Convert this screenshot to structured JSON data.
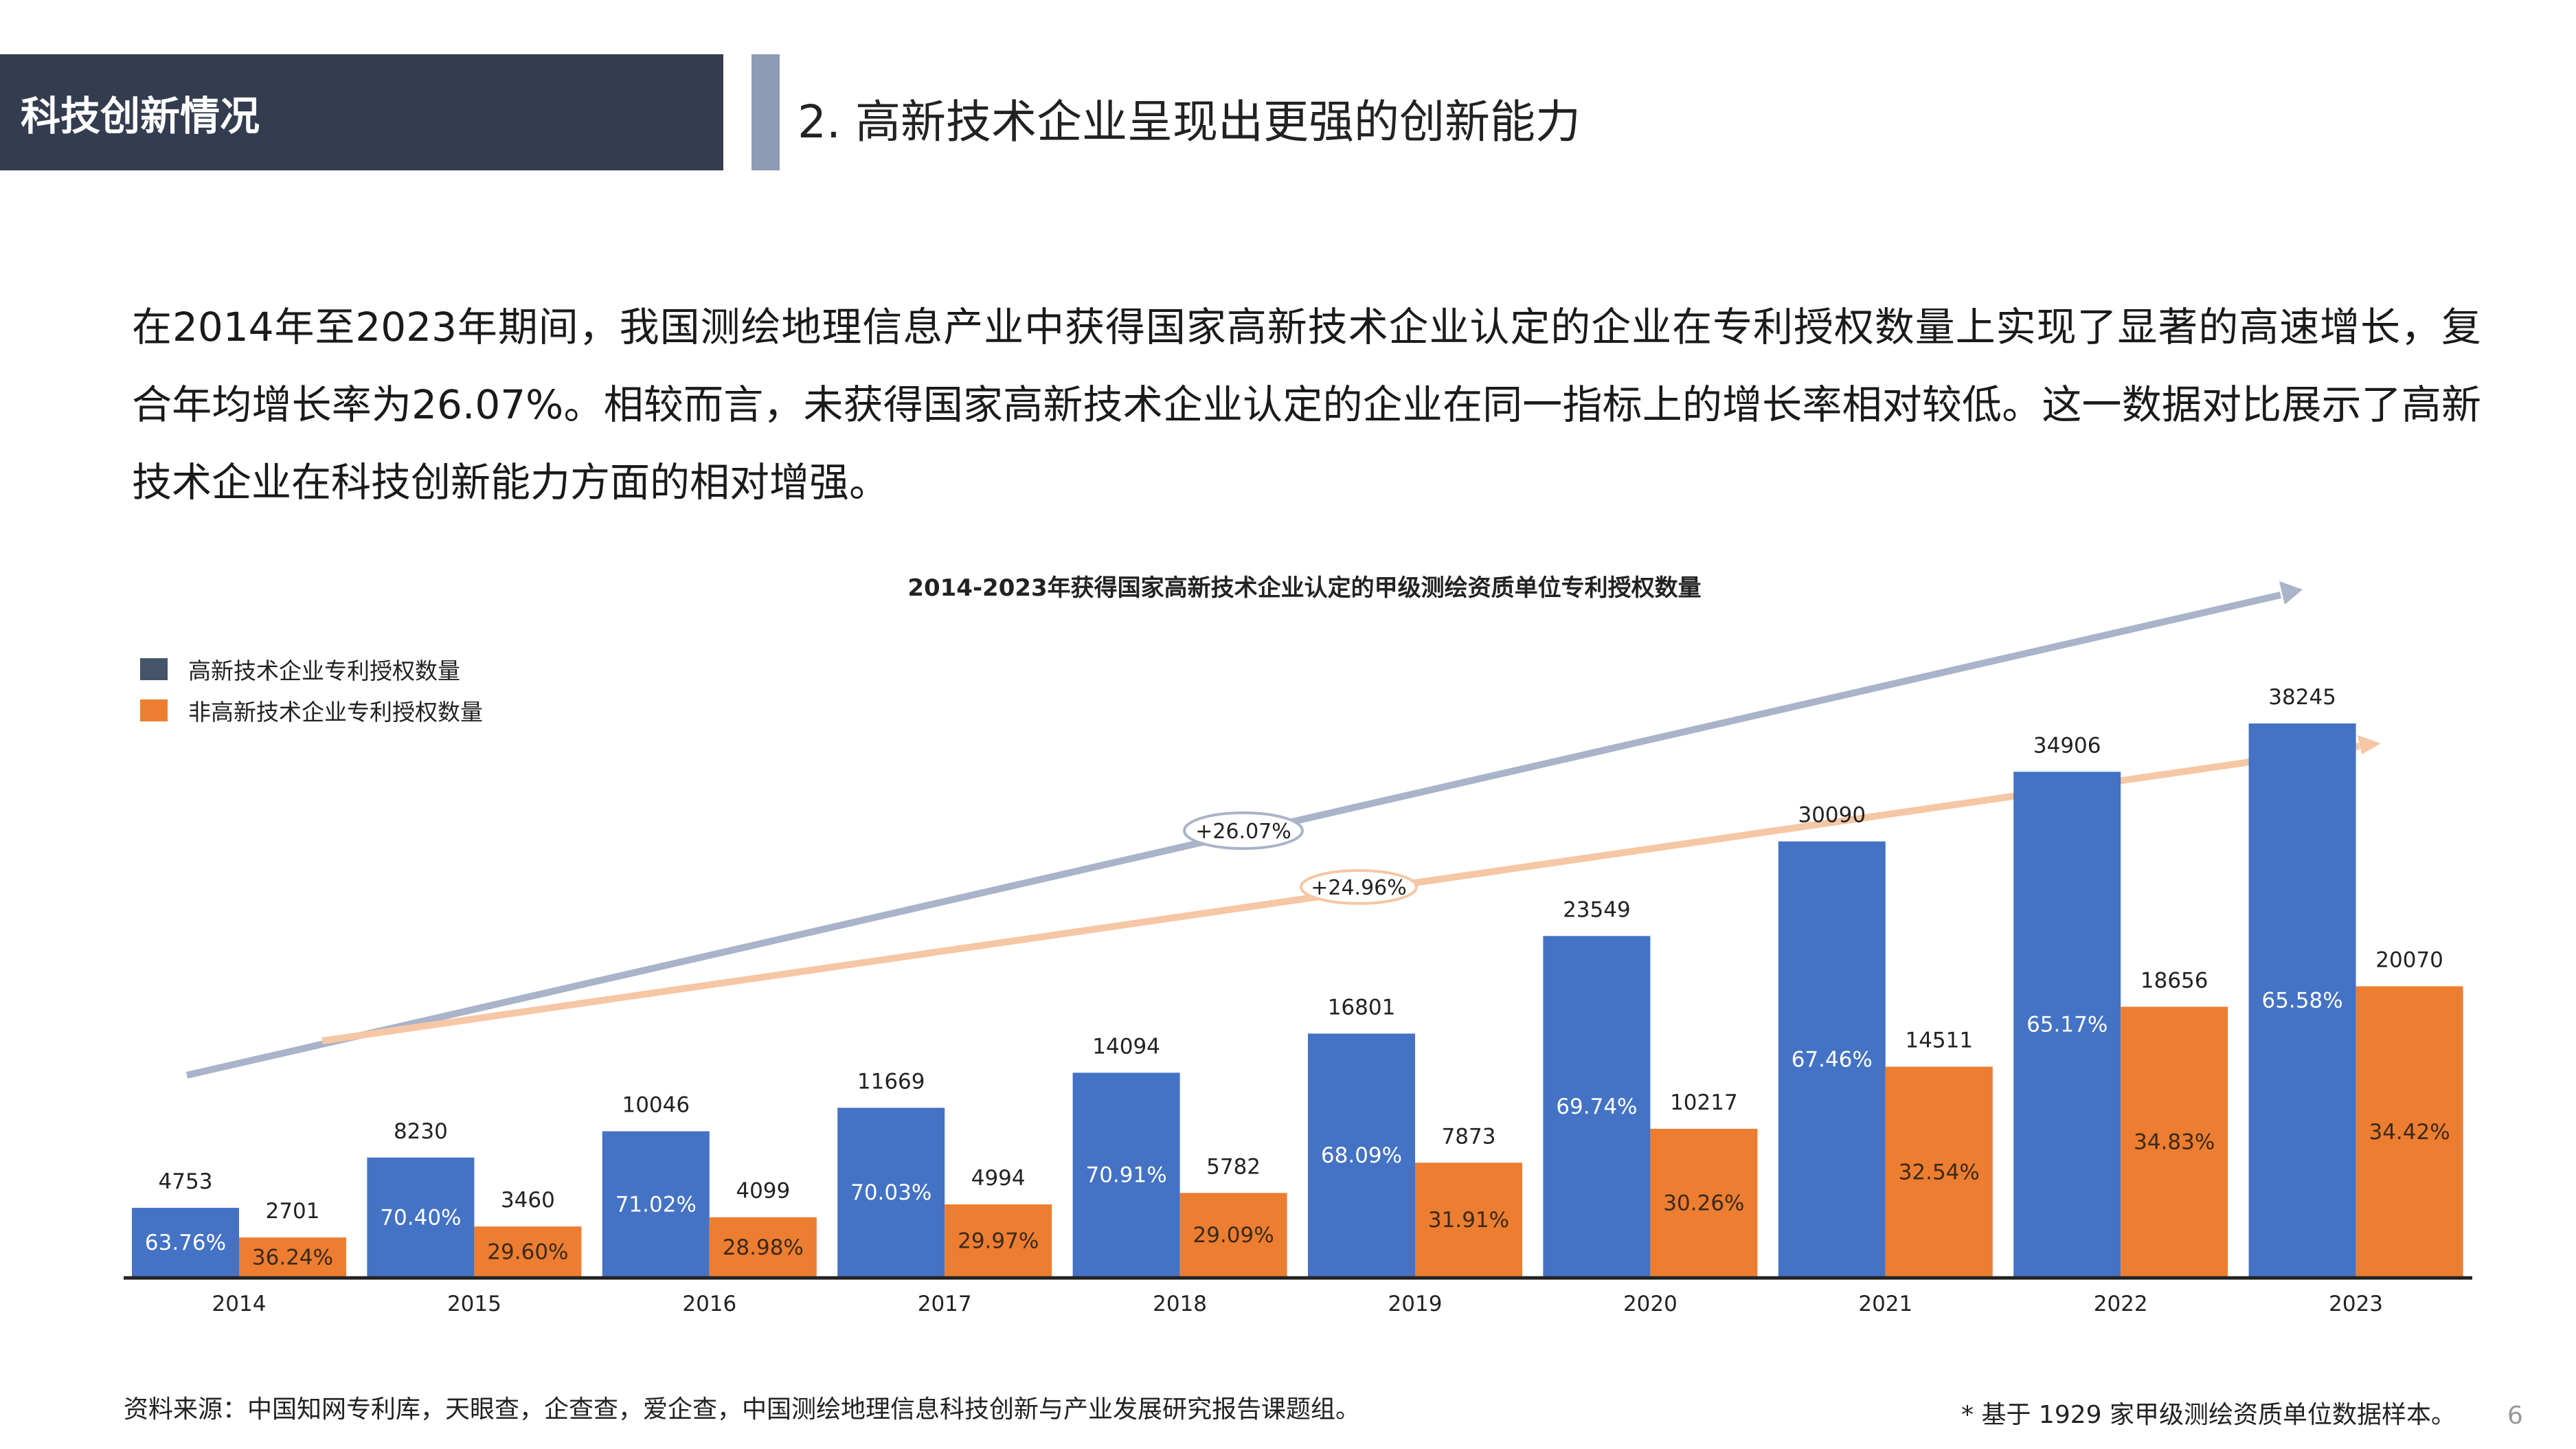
{
  "header": {
    "section": "科技创新情况",
    "title": "2.  高新技术企业呈现出更强的创新能力"
  },
  "paragraph": "在2014年至2023年期间，我国测绘地理信息产业中获得国家高新技术企业认定的企业在专利授权数量上实现了显著的高速增长，复合年均增长率为26.07%。相较而言，未获得国家高新技术企业认定的企业在同一指标上的增长率相对较低。这一数据对比展示了高新技术企业在科技创新能力方面的相对增强。",
  "chart_data": {
    "type": "bar",
    "title": "2014-2023年获得国家高新技术企业认定的甲级测绘资质单位专利授权数量",
    "categories": [
      "2014",
      "2015",
      "2016",
      "2017",
      "2018",
      "2019",
      "2020",
      "2021",
      "2022",
      "2023"
    ],
    "series": [
      {
        "name": "高新技术企业专利授权数量",
        "color": "#4472c4",
        "values": [
          4753,
          8230,
          10046,
          11669,
          14094,
          16801,
          23549,
          30090,
          34906,
          38245
        ],
        "shares": [
          "63.76%",
          "70.40%",
          "71.02%",
          "70.03%",
          "70.91%",
          "68.09%",
          "69.74%",
          "67.46%",
          "65.17%",
          "65.58%"
        ]
      },
      {
        "name": "非高新技术企业专利授权数量",
        "color": "#ed7d31",
        "values": [
          2701,
          3460,
          4099,
          4994,
          5782,
          7873,
          10217,
          14511,
          18656,
          20070
        ],
        "shares": [
          "36.24%",
          "29.60%",
          "28.98%",
          "29.97%",
          "29.09%",
          "31.91%",
          "30.26%",
          "32.54%",
          "34.83%",
          "34.42%"
        ]
      }
    ],
    "trend_annotations": [
      {
        "label": "+26.07%",
        "color": "#a9b3c9"
      },
      {
        "label": "+24.96%",
        "color": "#f5c7a5"
      }
    ],
    "legend_position": "top-left",
    "grid": false,
    "ylim": [
      0,
      38245
    ]
  },
  "footer": {
    "source": "资料来源：中国知网专利库，天眼查，企查查，爱企查，中国测绘地理信息科技创新与产业发展研究报告课题组。",
    "note": "* 基于 1929 家甲级测绘资质单位数据样本。",
    "page": "6"
  }
}
